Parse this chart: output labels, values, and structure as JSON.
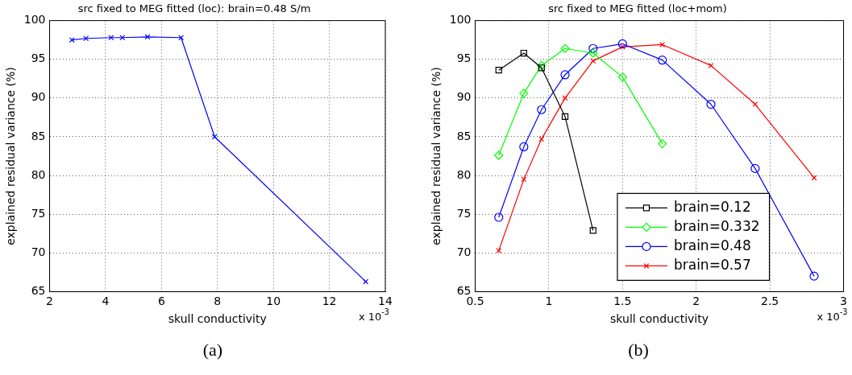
{
  "chart_data": [
    {
      "type": "line",
      "title": "src fixed to MEG fitted (loc): brain=0.48 S/m",
      "xlabel": "skull conductivity",
      "ylabel": "explained residual variance (%)",
      "x": [
        2.8,
        3.3,
        4.2,
        4.6,
        5.5,
        6.7,
        7.9,
        13.3
      ],
      "series": [
        {
          "color": "#0000ff",
          "values": [
            97.5,
            97.7,
            97.8,
            97.8,
            97.9,
            97.8,
            85.0,
            66.3
          ]
        }
      ],
      "xlim": [
        2,
        14
      ],
      "xticks": [
        2,
        4,
        6,
        8,
        10,
        12,
        14
      ],
      "ylim": [
        65,
        100
      ],
      "yticks": [
        65,
        70,
        75,
        80,
        85,
        90,
        95,
        100
      ],
      "grid": true,
      "marker": "cross",
      "legend": false,
      "annotations": [
        "x 10$^{-3}$",
        "(a)"
      ]
    },
    {
      "type": "line",
      "title": "src fixed to MEG fitted (loc+mom)",
      "xlabel": "skull conductivity",
      "ylabel": "explained residual variance (%)",
      "x": [
        0.66,
        0.83,
        0.95,
        1.11,
        1.3,
        1.5,
        1.77,
        2.1,
        2.4,
        2.8
      ],
      "series": [
        {
          "name": "brain=0.12",
          "color": "#000000",
          "marker": "square",
          "values": [
            93.6,
            95.8,
            93.9,
            87.6,
            72.9,
            null,
            null,
            null,
            null,
            null
          ]
        },
        {
          "name": "brain=0.332",
          "color": "#00ff00",
          "marker": "diamond",
          "values": [
            82.6,
            90.6,
            94.2,
            96.4,
            95.8,
            92.7,
            84.1,
            null,
            null,
            null
          ]
        },
        {
          "name": "brain=0.48",
          "color": "#0000ff",
          "marker": "circle",
          "values": [
            74.6,
            83.7,
            88.5,
            93.0,
            96.4,
            97.0,
            94.9,
            89.2,
            80.9,
            67.0
          ]
        },
        {
          "name": "brain=0.57",
          "color": "#ff0000",
          "marker": "cross",
          "values": [
            70.3,
            79.5,
            84.7,
            90.0,
            94.8,
            96.6,
            96.9,
            94.2,
            89.2,
            79.7
          ]
        }
      ],
      "xlim": [
        0.5,
        3
      ],
      "xticks": [
        0.5,
        1,
        1.5,
        2,
        2.5,
        3
      ],
      "ylim": [
        65,
        100
      ],
      "yticks": [
        65,
        70,
        75,
        80,
        85,
        90,
        95,
        100
      ],
      "grid": true,
      "legend": "bottom right",
      "annotations": [
        "x 10$^{-3}$",
        "(b)"
      ]
    }
  ]
}
